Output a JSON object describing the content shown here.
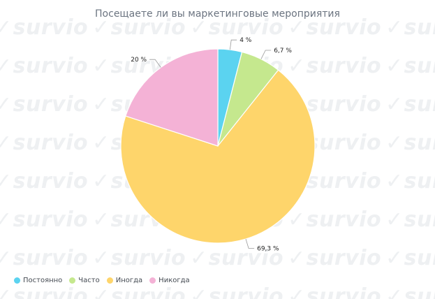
{
  "watermark": {
    "text": "survio",
    "icon": "check-icon"
  },
  "chart_data": {
    "type": "pie",
    "title": "Посещаете ли вы маркетинговые мероприятия",
    "categories": [
      "Постоянно",
      "Часто",
      "Иногда",
      "Никогда"
    ],
    "values": [
      4,
      6.7,
      69.3,
      20
    ],
    "value_labels": [
      "4 %",
      "6,7 %",
      "69,3 %",
      "20 %"
    ],
    "colors": [
      "#5bd3f0",
      "#c5e88e",
      "#fed56b",
      "#f4b2d6"
    ],
    "legend_position": "bottom-left"
  }
}
